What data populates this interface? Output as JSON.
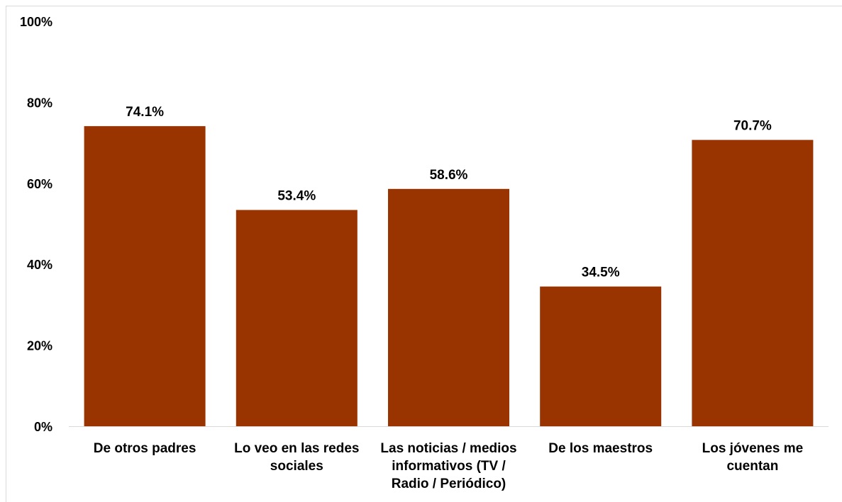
{
  "chart_data": {
    "type": "bar",
    "title": "",
    "xlabel": "",
    "ylabel": "",
    "categories": [
      [
        "De otros padres"
      ],
      [
        "Lo veo en las redes",
        "sociales"
      ],
      [
        "Las noticias / medios",
        "informativos (TV /",
        "Radio / Periódico)"
      ],
      [
        "De los maestros"
      ],
      [
        "Los jóvenes me",
        "cuentan"
      ]
    ],
    "values": [
      74.1,
      53.4,
      58.6,
      34.5,
      70.7
    ],
    "data_labels": [
      "74.1%",
      "53.4%",
      "58.6%",
      "34.5%",
      "70.7%"
    ],
    "y_ticks": [
      0,
      20,
      40,
      60,
      80,
      100
    ],
    "y_tick_labels": [
      "0%",
      "20%",
      "40%",
      "60%",
      "80%",
      "100%"
    ],
    "ylim": [
      0,
      100
    ],
    "grid": false,
    "legend": "none",
    "bar_color": "#993300"
  }
}
